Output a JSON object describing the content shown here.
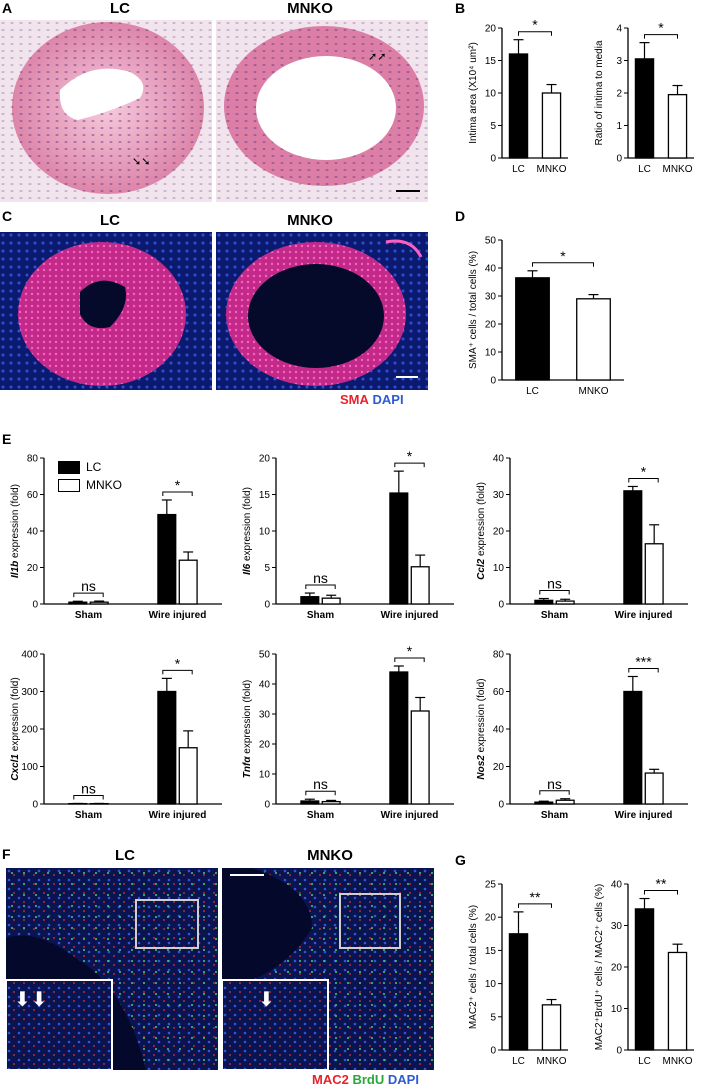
{
  "panels": {
    "A": {
      "label": "A",
      "left_title": "LC",
      "right_title": "MNKO"
    },
    "B": {
      "label": "B"
    },
    "C": {
      "label": "C",
      "left_title": "LC",
      "right_title": "MNKO",
      "stain_red": "SMA",
      "stain_blue": "DAPI"
    },
    "D": {
      "label": "D"
    },
    "E": {
      "label": "E",
      "legend_lc": "LC",
      "legend_mnko": "MNKO"
    },
    "F": {
      "label": "F",
      "left_title": "LC",
      "right_title": "MNKO",
      "stain_red": "MAC2",
      "stain_green": "BrdU",
      "stain_blue": "DAPI"
    },
    "G": {
      "label": "G"
    }
  },
  "colors": {
    "he_pink": "#e8a6c6",
    "he_bg": "#f4e7ef",
    "fluor_bg": "#0b1a6e",
    "sma": "#e0309a",
    "mac2": "#e83030",
    "brdu": "#3fd06a",
    "inset_border": "#cfcfcf"
  },
  "chart_data": [
    {
      "id": "B1",
      "type": "bar",
      "ylabel": "Intima area (X10⁴ um²)",
      "categories": [
        "LC",
        "MNKO"
      ],
      "values": [
        16,
        10
      ],
      "errors": [
        2.2,
        1.3
      ],
      "ylim": [
        0,
        20
      ],
      "yticks": [
        0,
        5,
        10,
        15,
        20
      ],
      "sig": "*",
      "fills": [
        "#000000",
        "#ffffff"
      ]
    },
    {
      "id": "B2",
      "type": "bar",
      "ylabel": "Ratio of intima to media",
      "categories": [
        "LC",
        "MNKO"
      ],
      "values": [
        3.05,
        1.95
      ],
      "errors": [
        0.5,
        0.28
      ],
      "ylim": [
        0,
        4
      ],
      "yticks": [
        0,
        1,
        2,
        3,
        4
      ],
      "sig": "*",
      "fills": [
        "#000000",
        "#ffffff"
      ]
    },
    {
      "id": "D",
      "type": "bar",
      "ylabel": "SMA⁺ cells / total cells (%)",
      "categories": [
        "LC",
        "MNKO"
      ],
      "values": [
        36.5,
        29
      ],
      "errors": [
        2.5,
        1.5
      ],
      "ylim": [
        0,
        50
      ],
      "yticks": [
        0,
        10,
        20,
        30,
        40,
        50
      ],
      "sig": "*",
      "fills": [
        "#000000",
        "#ffffff"
      ]
    },
    {
      "id": "E1",
      "type": "bar",
      "ylabel_italic": "Il1b",
      "ylabel_rest": " expression (fold)",
      "groups": [
        "Sham",
        "Wire injured"
      ],
      "series": [
        {
          "name": "LC",
          "values": [
            1,
            49
          ],
          "errors": [
            0.5,
            8
          ]
        },
        {
          "name": "MNKO",
          "values": [
            1,
            24
          ],
          "errors": [
            0.6,
            4.5
          ]
        }
      ],
      "ylim": [
        0,
        80
      ],
      "yticks": [
        0,
        20,
        40,
        60,
        80
      ],
      "sig": [
        "ns",
        "*"
      ]
    },
    {
      "id": "E2",
      "type": "bar",
      "ylabel_italic": "Il6",
      "ylabel_rest": " expression (fold)",
      "groups": [
        "Sham",
        "Wire injured"
      ],
      "series": [
        {
          "name": "LC",
          "values": [
            1,
            15.2
          ],
          "errors": [
            0.5,
            3
          ]
        },
        {
          "name": "MNKO",
          "values": [
            0.8,
            5.1
          ],
          "errors": [
            0.4,
            1.6
          ]
        }
      ],
      "ylim": [
        0,
        20
      ],
      "yticks": [
        0,
        5,
        10,
        15,
        20
      ],
      "sig": [
        "ns",
        "*"
      ]
    },
    {
      "id": "E3",
      "type": "bar",
      "ylabel_italic": "Ccl2",
      "ylabel_rest": " expression (fold)",
      "groups": [
        "Sham",
        "Wire injured"
      ],
      "series": [
        {
          "name": "LC",
          "values": [
            1,
            31
          ],
          "errors": [
            0.5,
            1.2
          ]
        },
        {
          "name": "MNKO",
          "values": [
            0.8,
            16.5
          ],
          "errors": [
            0.5,
            5.2
          ]
        }
      ],
      "ylim": [
        0,
        40
      ],
      "yticks": [
        0,
        10,
        20,
        30,
        40
      ],
      "sig": [
        "ns",
        "*"
      ]
    },
    {
      "id": "E4",
      "type": "bar",
      "ylabel_italic": "Cxcl1",
      "ylabel_rest": " expression (fold)",
      "groups": [
        "Sham",
        "Wire injured"
      ],
      "series": [
        {
          "name": "LC",
          "values": [
            1,
            300
          ],
          "errors": [
            0.5,
            35
          ]
        },
        {
          "name": "MNKO",
          "values": [
            1,
            150
          ],
          "errors": [
            0.5,
            45
          ]
        }
      ],
      "ylim": [
        0,
        400
      ],
      "yticks": [
        0,
        100,
        200,
        300,
        400
      ],
      "sig": [
        "ns",
        "*"
      ]
    },
    {
      "id": "E5",
      "type": "bar",
      "ylabel_italic": "Tnfα",
      "ylabel_rest": " expression (fold)",
      "groups": [
        "Sham",
        "Wire injured"
      ],
      "series": [
        {
          "name": "LC",
          "values": [
            1,
            44
          ],
          "errors": [
            0.6,
            2
          ]
        },
        {
          "name": "MNKO",
          "values": [
            0.8,
            31
          ],
          "errors": [
            0.4,
            4.5
          ]
        }
      ],
      "ylim": [
        0,
        50
      ],
      "yticks": [
        0,
        10,
        20,
        30,
        40,
        50
      ],
      "sig": [
        "ns",
        "*"
      ]
    },
    {
      "id": "E6",
      "type": "bar",
      "ylabel_italic": "Nos2",
      "ylabel_rest": " expression (fold)",
      "groups": [
        "Sham",
        "Wire injured"
      ],
      "series": [
        {
          "name": "LC",
          "values": [
            1,
            60
          ],
          "errors": [
            0.5,
            8
          ]
        },
        {
          "name": "MNKO",
          "values": [
            2,
            16.5
          ],
          "errors": [
            0.8,
            2
          ]
        }
      ],
      "ylim": [
        0,
        80
      ],
      "yticks": [
        0,
        20,
        40,
        60,
        80
      ],
      "sig": [
        "ns",
        "***"
      ]
    },
    {
      "id": "G1",
      "type": "bar",
      "ylabel": "MAC2⁺ cells / total cells (%)",
      "categories": [
        "LC",
        "MNKO"
      ],
      "values": [
        17.5,
        6.8
      ],
      "errors": [
        3.3,
        0.8
      ],
      "ylim": [
        0,
        25
      ],
      "yticks": [
        0,
        5,
        10,
        15,
        20,
        25
      ],
      "sig": "**",
      "fills": [
        "#000000",
        "#ffffff"
      ]
    },
    {
      "id": "G2",
      "type": "bar",
      "ylabel": "MAC2⁺BrdU⁺ cells / MAC2⁺ cells (%)",
      "categories": [
        "LC",
        "MNKO"
      ],
      "values": [
        34,
        23.5
      ],
      "errors": [
        2.5,
        2
      ],
      "ylim": [
        0,
        40
      ],
      "yticks": [
        0,
        10,
        20,
        30,
        40
      ],
      "sig": "**",
      "fills": [
        "#000000",
        "#ffffff"
      ]
    }
  ]
}
